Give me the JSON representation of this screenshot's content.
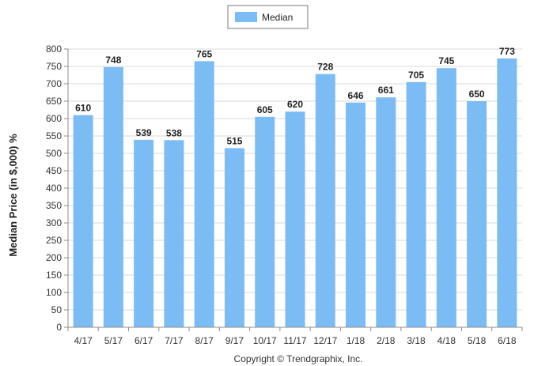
{
  "chart_data": {
    "type": "bar",
    "categories": [
      "4/17",
      "5/17",
      "6/17",
      "7/17",
      "8/17",
      "9/17",
      "10/17",
      "11/17",
      "12/17",
      "1/18",
      "2/18",
      "3/18",
      "4/18",
      "5/18",
      "6/18"
    ],
    "series": [
      {
        "name": "Median",
        "values": [
          610,
          748,
          539,
          538,
          765,
          515,
          605,
          620,
          728,
          646,
          661,
          705,
          745,
          650,
          773
        ],
        "color": "#7bbcf5"
      }
    ],
    "data_labels": [
      "610",
      "748",
      "539",
      "538",
      "765",
      "515",
      "605",
      "620",
      "728",
      "646",
      "661",
      "705",
      "745",
      "650",
      "773"
    ],
    "ylabel": "Median Price (in $,000) %",
    "ylim": [
      0,
      800
    ],
    "y_ticks": [
      "0",
      "50",
      "100",
      "150",
      "200",
      "250",
      "300",
      "350",
      "400",
      "450",
      "500",
      "550",
      "600",
      "650",
      "700",
      "750",
      "800"
    ],
    "grid": true,
    "legend": "top-center",
    "gridline_color": "#d9d9d9"
  },
  "footer": "Copyright © Trendgraphix, Inc."
}
